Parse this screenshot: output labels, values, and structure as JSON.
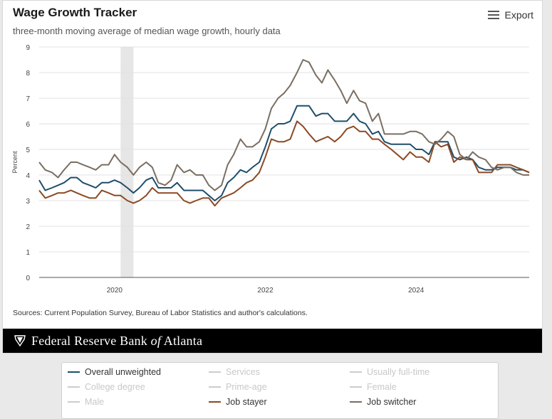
{
  "header": {
    "title": "Wage Growth Tracker",
    "subtitle": "three-month moving average of median wage growth, hourly data",
    "export_label": "Export"
  },
  "footer": {
    "sources": "Sources: Current Population Survey, Bureau of Labor Statistics and author's calculations.",
    "bank_name_1": "Federal Reserve Bank ",
    "bank_name_of": "of",
    "bank_name_2": " Atlanta"
  },
  "legend": [
    {
      "label": "Overall unweighted",
      "color": "#1f4e6b",
      "active": true
    },
    {
      "label": "Services",
      "color": "#cccccc",
      "active": false
    },
    {
      "label": "Usually full-time",
      "color": "#cccccc",
      "active": false
    },
    {
      "label": "College degree",
      "color": "#cccccc",
      "active": false
    },
    {
      "label": "Prime-age",
      "color": "#cccccc",
      "active": false
    },
    {
      "label": "Female",
      "color": "#cccccc",
      "active": false
    },
    {
      "label": "Male",
      "color": "#cccccc",
      "active": false
    },
    {
      "label": "Job stayer",
      "color": "#8b4a24",
      "active": true
    },
    {
      "label": "Job switcher",
      "color": "#7a6e62",
      "active": true
    }
  ],
  "chart_data": {
    "type": "line",
    "title": "Wage Growth Tracker",
    "ylabel": "Percent",
    "xlabel": "",
    "ylim": [
      0,
      9
    ],
    "yticks": [
      "0",
      "1",
      "2",
      "3",
      "4",
      "5",
      "6",
      "7",
      "8",
      "9"
    ],
    "xlim": [
      2019.0,
      2025.5
    ],
    "xticks": [
      {
        "value": 2020.0,
        "label": "2020"
      },
      {
        "value": 2022.0,
        "label": "2022"
      },
      {
        "value": 2024.0,
        "label": "2024"
      }
    ],
    "shaded_region": {
      "from": 2020.08,
      "to": 2020.25,
      "color": "#e6e6e6"
    },
    "series": [
      {
        "name": "Overall unweighted",
        "color": "#1f4e6b",
        "x": [
          2019.0,
          2019.08,
          2019.17,
          2019.25,
          2019.33,
          2019.42,
          2019.5,
          2019.58,
          2019.67,
          2019.75,
          2019.83,
          2019.92,
          2020.0,
          2020.08,
          2020.17,
          2020.25,
          2020.33,
          2020.42,
          2020.5,
          2020.58,
          2020.67,
          2020.75,
          2020.83,
          2020.92,
          2021.0,
          2021.08,
          2021.17,
          2021.25,
          2021.33,
          2021.42,
          2021.5,
          2021.58,
          2021.67,
          2021.75,
          2021.83,
          2021.92,
          2022.0,
          2022.08,
          2022.17,
          2022.25,
          2022.33,
          2022.42,
          2022.5,
          2022.58,
          2022.67,
          2022.75,
          2022.83,
          2022.92,
          2023.0,
          2023.08,
          2023.17,
          2023.25,
          2023.33,
          2023.42,
          2023.5,
          2023.58,
          2023.67,
          2023.75,
          2023.83,
          2023.92,
          2024.0,
          2024.08,
          2024.17,
          2024.25,
          2024.33,
          2024.42,
          2024.5,
          2024.58,
          2024.67,
          2024.75,
          2024.83,
          2024.92,
          2025.0,
          2025.08,
          2025.17,
          2025.25,
          2025.33,
          2025.42,
          2025.5
        ],
        "y": [
          3.8,
          3.4,
          3.5,
          3.6,
          3.7,
          3.9,
          3.9,
          3.7,
          3.6,
          3.5,
          3.7,
          3.7,
          3.8,
          3.7,
          3.5,
          3.3,
          3.5,
          3.8,
          3.9,
          3.5,
          3.5,
          3.5,
          3.7,
          3.4,
          3.4,
          3.4,
          3.4,
          3.2,
          3.0,
          3.2,
          3.7,
          3.9,
          4.2,
          4.1,
          4.3,
          4.5,
          5.1,
          5.8,
          6.0,
          6.0,
          6.1,
          6.7,
          6.7,
          6.7,
          6.3,
          6.4,
          6.4,
          6.1,
          6.1,
          6.1,
          6.4,
          6.1,
          6.0,
          5.6,
          5.7,
          5.3,
          5.2,
          5.2,
          5.2,
          5.2,
          5.0,
          5.0,
          4.8,
          5.3,
          5.3,
          5.3,
          4.7,
          4.6,
          4.7,
          4.6,
          4.3,
          4.2,
          4.2,
          4.3,
          4.3,
          4.3,
          4.2,
          4.2,
          4.1
        ]
      },
      {
        "name": "Job stayer",
        "color": "#8b4a24",
        "x": [
          2019.0,
          2019.08,
          2019.17,
          2019.25,
          2019.33,
          2019.42,
          2019.5,
          2019.58,
          2019.67,
          2019.75,
          2019.83,
          2019.92,
          2020.0,
          2020.08,
          2020.17,
          2020.25,
          2020.33,
          2020.42,
          2020.5,
          2020.58,
          2020.67,
          2020.75,
          2020.83,
          2020.92,
          2021.0,
          2021.08,
          2021.17,
          2021.25,
          2021.33,
          2021.42,
          2021.5,
          2021.58,
          2021.67,
          2021.75,
          2021.83,
          2021.92,
          2022.0,
          2022.08,
          2022.17,
          2022.25,
          2022.33,
          2022.42,
          2022.5,
          2022.58,
          2022.67,
          2022.75,
          2022.83,
          2022.92,
          2023.0,
          2023.08,
          2023.17,
          2023.25,
          2023.33,
          2023.42,
          2023.5,
          2023.58,
          2023.67,
          2023.75,
          2023.83,
          2023.92,
          2024.0,
          2024.08,
          2024.17,
          2024.25,
          2024.33,
          2024.42,
          2024.5,
          2024.58,
          2024.67,
          2024.75,
          2024.83,
          2024.92,
          2025.0,
          2025.08,
          2025.17,
          2025.25,
          2025.33,
          2025.42,
          2025.5
        ],
        "y": [
          3.4,
          3.1,
          3.2,
          3.3,
          3.3,
          3.4,
          3.3,
          3.2,
          3.1,
          3.1,
          3.4,
          3.3,
          3.2,
          3.2,
          3.0,
          2.9,
          3.0,
          3.2,
          3.5,
          3.3,
          3.3,
          3.3,
          3.3,
          3.0,
          2.9,
          3.0,
          3.1,
          3.1,
          2.8,
          3.1,
          3.2,
          3.3,
          3.5,
          3.7,
          3.8,
          4.1,
          4.7,
          5.4,
          5.3,
          5.3,
          5.4,
          6.1,
          5.9,
          5.6,
          5.3,
          5.4,
          5.5,
          5.3,
          5.5,
          5.8,
          5.9,
          5.7,
          5.7,
          5.4,
          5.4,
          5.2,
          5.0,
          4.8,
          4.6,
          4.9,
          4.7,
          4.7,
          4.5,
          5.3,
          5.1,
          5.2,
          4.5,
          4.7,
          4.6,
          4.6,
          4.1,
          4.1,
          4.1,
          4.4,
          4.4,
          4.4,
          4.3,
          4.2,
          4.1
        ]
      },
      {
        "name": "Job switcher",
        "color": "#7a6e62",
        "x": [
          2019.0,
          2019.08,
          2019.17,
          2019.25,
          2019.33,
          2019.42,
          2019.5,
          2019.58,
          2019.67,
          2019.75,
          2019.83,
          2019.92,
          2020.0,
          2020.08,
          2020.17,
          2020.25,
          2020.33,
          2020.42,
          2020.5,
          2020.58,
          2020.67,
          2020.75,
          2020.83,
          2020.92,
          2021.0,
          2021.08,
          2021.17,
          2021.25,
          2021.33,
          2021.42,
          2021.5,
          2021.58,
          2021.67,
          2021.75,
          2021.83,
          2021.92,
          2022.0,
          2022.08,
          2022.17,
          2022.25,
          2022.33,
          2022.42,
          2022.5,
          2022.58,
          2022.67,
          2022.75,
          2022.83,
          2022.92,
          2023.0,
          2023.08,
          2023.17,
          2023.25,
          2023.33,
          2023.42,
          2023.5,
          2023.58,
          2023.67,
          2023.75,
          2023.83,
          2023.92,
          2024.0,
          2024.08,
          2024.17,
          2024.25,
          2024.33,
          2024.42,
          2024.5,
          2024.58,
          2024.67,
          2024.75,
          2024.83,
          2024.92,
          2025.0,
          2025.08,
          2025.17,
          2025.25,
          2025.33,
          2025.42,
          2025.5
        ],
        "y": [
          4.5,
          4.2,
          4.1,
          3.9,
          4.2,
          4.5,
          4.5,
          4.4,
          4.3,
          4.2,
          4.4,
          4.4,
          4.8,
          4.5,
          4.3,
          4.0,
          4.3,
          4.5,
          4.3,
          3.7,
          3.6,
          3.8,
          4.4,
          4.1,
          4.2,
          4.0,
          4.0,
          3.6,
          3.4,
          3.6,
          4.4,
          4.8,
          5.4,
          5.1,
          5.1,
          5.3,
          5.8,
          6.6,
          7.0,
          7.2,
          7.5,
          8.0,
          8.5,
          8.4,
          7.9,
          7.6,
          8.1,
          7.7,
          7.3,
          6.8,
          7.3,
          6.9,
          6.8,
          6.1,
          6.4,
          5.6,
          5.6,
          5.6,
          5.6,
          5.7,
          5.7,
          5.6,
          5.3,
          5.2,
          5.4,
          5.7,
          5.5,
          4.8,
          4.6,
          4.9,
          4.7,
          4.6,
          4.3,
          4.2,
          4.3,
          4.3,
          4.1,
          4.0,
          4.0
        ]
      }
    ]
  }
}
